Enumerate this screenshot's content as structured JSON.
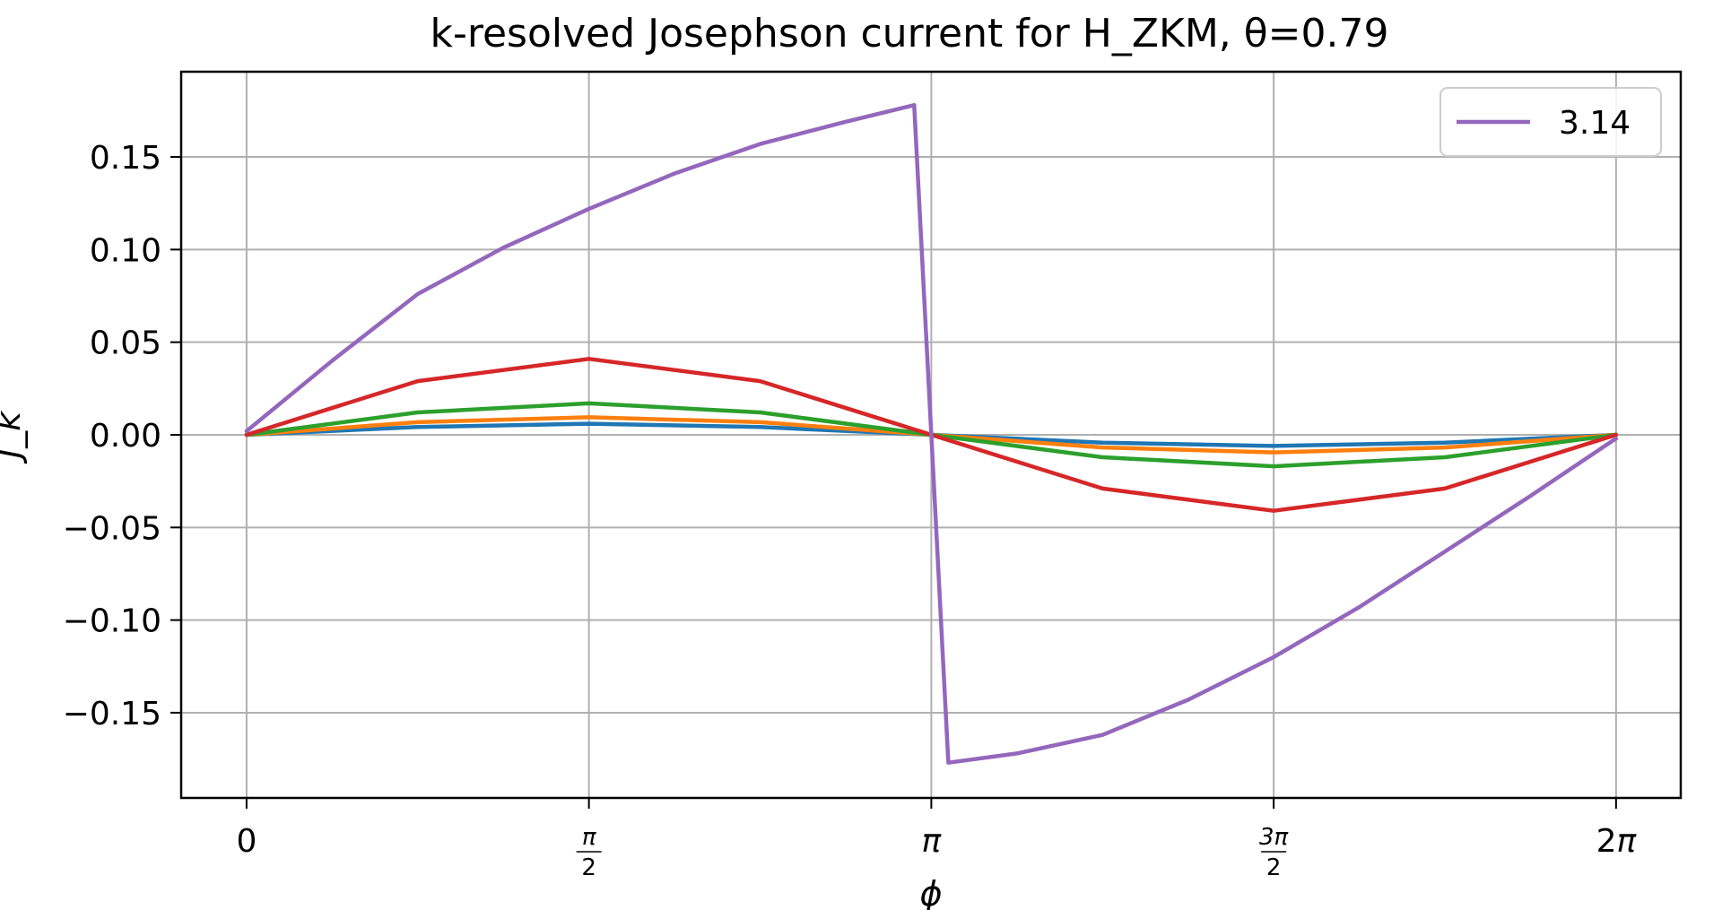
{
  "chart_data": {
    "type": "line",
    "title": "k-resolved Josephson current for H_ZKM, θ=0.79",
    "xlabel": "ϕ",
    "ylabel": "J_k",
    "xlim": [
      -0.3,
      6.58
    ],
    "ylim": [
      -0.196,
      0.196
    ],
    "grid": true,
    "legend_placement": "top-right",
    "x_ticks": [
      {
        "value": 0,
        "label": "0",
        "kind": "plain"
      },
      {
        "value": 1.5708,
        "num": "π",
        "den": "2",
        "kind": "frac"
      },
      {
        "value": 3.1416,
        "label": "π",
        "kind": "italic"
      },
      {
        "value": 4.7124,
        "num": "3π",
        "den": "2",
        "kind": "frac"
      },
      {
        "value": 6.2832,
        "label": "2π",
        "kind": "twopi"
      }
    ],
    "y_ticks": [
      {
        "value": 0.15,
        "label": "0.15"
      },
      {
        "value": 0.1,
        "label": "0.10"
      },
      {
        "value": 0.05,
        "label": "0.05"
      },
      {
        "value": 0.0,
        "label": "0.00"
      },
      {
        "value": -0.05,
        "label": "−0.05"
      },
      {
        "value": -0.1,
        "label": "−0.10"
      },
      {
        "value": -0.15,
        "label": "−0.15"
      }
    ],
    "series": [
      {
        "color": "#1f77b4",
        "x": [
          0,
          0.785,
          1.571,
          2.356,
          3.142,
          3.927,
          4.712,
          5.498,
          6.283
        ],
        "values": [
          0,
          0.0042,
          0.006,
          0.0042,
          0,
          -0.0042,
          -0.006,
          -0.0042,
          0
        ]
      },
      {
        "color": "#ff7f0e",
        "x": [
          0,
          0.785,
          1.571,
          2.356,
          3.142,
          3.927,
          4.712,
          5.498,
          6.283
        ],
        "values": [
          0,
          0.0068,
          0.0095,
          0.0068,
          0,
          -0.0068,
          -0.0095,
          -0.0068,
          0
        ]
      },
      {
        "color": "#2ca02c",
        "x": [
          0,
          0.785,
          1.571,
          2.356,
          3.142,
          3.927,
          4.712,
          5.498,
          6.283
        ],
        "values": [
          0,
          0.0121,
          0.017,
          0.0121,
          0,
          -0.0121,
          -0.017,
          -0.0121,
          0
        ]
      },
      {
        "color": "#d62728",
        "x": [
          0,
          0.785,
          1.571,
          2.356,
          3.142,
          3.927,
          4.712,
          5.498,
          6.283
        ],
        "values": [
          0,
          0.029,
          0.041,
          0.029,
          0,
          -0.029,
          -0.041,
          -0.029,
          0
        ]
      },
      {
        "name": "3.14",
        "color": "#9467bd",
        "x": [
          0,
          0.393,
          0.785,
          1.178,
          1.571,
          1.963,
          2.356,
          2.749,
          3.063,
          3.22,
          3.534,
          3.927,
          4.32,
          4.712,
          5.105,
          5.498,
          5.89,
          6.283
        ],
        "values": [
          0.002,
          0.04,
          0.076,
          0.101,
          0.122,
          0.141,
          0.157,
          0.169,
          0.178,
          -0.177,
          -0.172,
          -0.162,
          -0.143,
          -0.12,
          -0.093,
          -0.063,
          -0.033,
          -0.002
        ]
      }
    ]
  }
}
